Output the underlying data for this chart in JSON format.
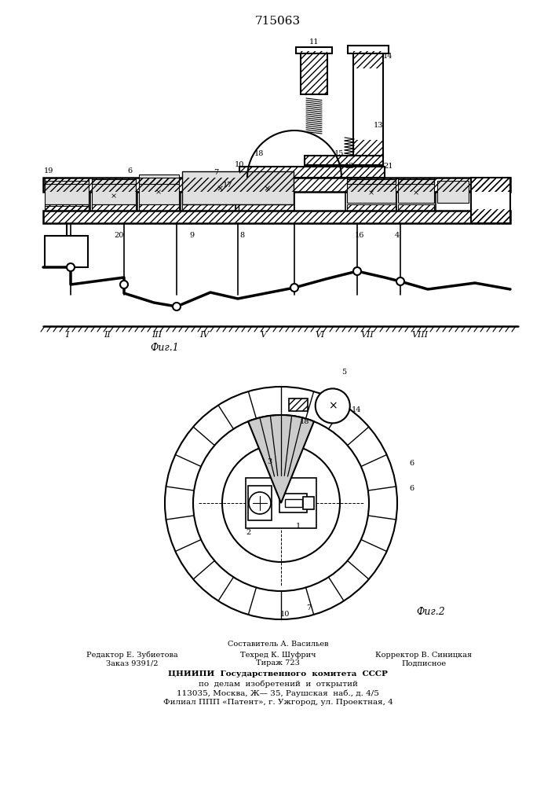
{
  "patent_number": "715063",
  "fig1_label": "Фиг.1",
  "fig2_label": "Фиг.2",
  "bg_color": "#ffffff",
  "lc": "#000000",
  "footer_line1": "Составитель А. Васильев",
  "footer_line2_l": "Редактор Е. Зубиетова",
  "footer_line2_m": "Техред К. Шуфрич",
  "footer_line2_r": "Корректор В. Синицкая",
  "footer_line3_l": "Заказ 9391/2",
  "footer_line3_m": "Тираж 723",
  "footer_line3_r": "Подписное",
  "footer_cniip1": "ЦНИИПИ  Государственного  комитета  СССР",
  "footer_cniip2": "по  делам  изобретений  и  открытий",
  "footer_cniip3": "113035, Москва, Ж— 35, Раушская  наб., д. 4/5",
  "footer_cniip4": "Филиал ППП «Патент», г. Ужгород, ул. Проектная, 4"
}
